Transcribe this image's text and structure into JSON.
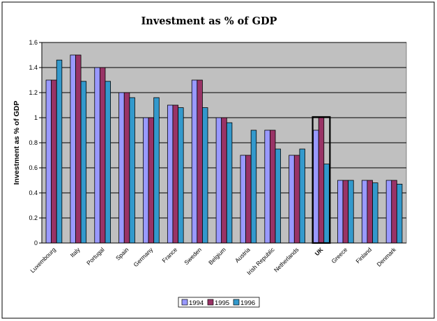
{
  "chart_data": {
    "type": "bar",
    "title": "Investment as % of GDP",
    "ylabel": "Investment as % of GDP",
    "xlabel": "",
    "ylim": [
      0,
      1.6
    ],
    "yticks": [
      "0",
      "0.2",
      "0.4",
      "0.6",
      "0.8",
      "1",
      "1.2",
      "1.4",
      "1.6"
    ],
    "grid": true,
    "legend_position": "bottom",
    "plot_background": "#c0c0c0",
    "highlighted_category": "UK",
    "categories": [
      "Luxembourg",
      "Italy",
      "Portugal",
      "Spain",
      "Germany",
      "France",
      "Sweden",
      "Belgium",
      "Austria",
      "Irish Republic",
      "Netherlands",
      "UK",
      "Greece",
      "Finland",
      "Denmark"
    ],
    "series": [
      {
        "name": "1994",
        "color": "#9999ff",
        "values": [
          1.3,
          1.5,
          1.4,
          1.2,
          1.0,
          1.1,
          1.3,
          1.0,
          0.7,
          0.9,
          0.7,
          0.9,
          0.5,
          0.5,
          0.5
        ]
      },
      {
        "name": "1995",
        "color": "#993366",
        "values": [
          1.3,
          1.5,
          1.4,
          1.2,
          1.0,
          1.1,
          1.3,
          1.0,
          0.7,
          0.9,
          0.7,
          1.0,
          0.5,
          0.5,
          0.5
        ]
      },
      {
        "name": "1996",
        "color": "#3399cc",
        "values": [
          1.46,
          1.29,
          1.29,
          1.16,
          1.16,
          1.08,
          1.08,
          0.96,
          0.9,
          0.75,
          0.75,
          0.63,
          0.5,
          0.48,
          0.47
        ]
      }
    ]
  }
}
